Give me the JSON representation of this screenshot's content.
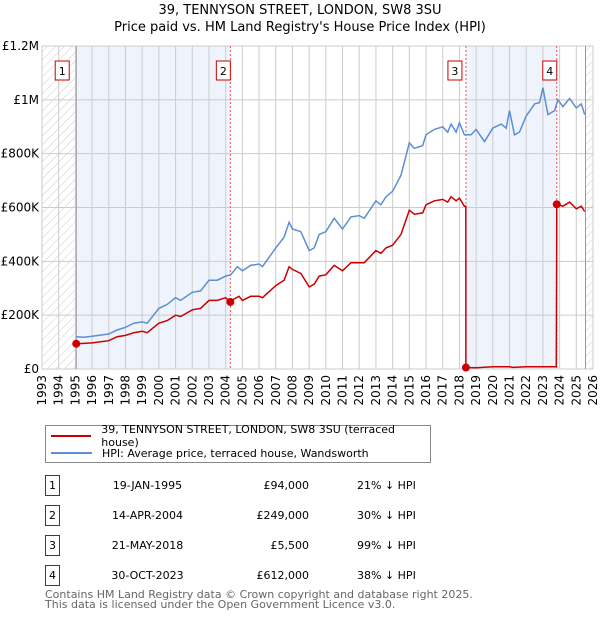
{
  "chart_data": {
    "type": "line",
    "title": "39, TENNYSON STREET, LONDON, SW8 3SU",
    "subtitle": "Price paid vs. HM Land Registry's House Price Index (HPI)",
    "xlim": [
      1993,
      2026
    ],
    "ylim": [
      0,
      1200000
    ],
    "x_ticks": [
      "1993",
      "1994",
      "1995",
      "1996",
      "1997",
      "1998",
      "1999",
      "2000",
      "2001",
      "2002",
      "2003",
      "2004",
      "2005",
      "2006",
      "2007",
      "2008",
      "2009",
      "2010",
      "2011",
      "2012",
      "2013",
      "2014",
      "2015",
      "2016",
      "2017",
      "2018",
      "2019",
      "2020",
      "2021",
      "2022",
      "2023",
      "2024",
      "2025",
      "2026"
    ],
    "y_ticks": [
      {
        "v": 0,
        "label": "£0"
      },
      {
        "v": 200000,
        "label": "£200K"
      },
      {
        "v": 400000,
        "label": "£400K"
      },
      {
        "v": 600000,
        "label": "£600K"
      },
      {
        "v": 800000,
        "label": "£800K"
      },
      {
        "v": 1000000,
        "label": "£1M"
      },
      {
        "v": 1200000,
        "label": "£1.2M"
      }
    ],
    "grid": true,
    "shaded_periods": [
      [
        1995.05,
        2004.28
      ],
      [
        2018.39,
        2023.83
      ]
    ],
    "hatched_periods": [
      [
        1993,
        1995.05
      ],
      [
        2025.55,
        2026
      ]
    ],
    "colors": {
      "property": "#cc0000",
      "hpi": "#5b8fd1",
      "shade": "#eef3fc"
    },
    "series": [
      {
        "name": "39, TENNYSON STREET, LONDON, SW8 3SU (terraced house)",
        "key": "property",
        "points_k": [
          [
            1995.05,
            94
          ],
          [
            1995.5,
            95
          ],
          [
            1996,
            97
          ],
          [
            1997,
            105
          ],
          [
            1997.5,
            120
          ],
          [
            1998,
            125
          ],
          [
            1998.5,
            135
          ],
          [
            1999,
            140
          ],
          [
            1999.3,
            135
          ],
          [
            2000,
            170
          ],
          [
            2000.5,
            180
          ],
          [
            2001,
            200
          ],
          [
            2001.3,
            195
          ],
          [
            2002,
            220
          ],
          [
            2002.5,
            225
          ],
          [
            2003,
            255
          ],
          [
            2003.5,
            255
          ],
          [
            2004,
            265
          ],
          [
            2004.28,
            249
          ],
          [
            2004.5,
            260
          ],
          [
            2004.8,
            270
          ],
          [
            2005,
            255
          ],
          [
            2005.5,
            270
          ],
          [
            2006,
            270
          ],
          [
            2006.2,
            265
          ],
          [
            2007,
            310
          ],
          [
            2007.5,
            330
          ],
          [
            2007.8,
            380
          ],
          [
            2008,
            370
          ],
          [
            2008.5,
            355
          ],
          [
            2009,
            305
          ],
          [
            2009.3,
            315
          ],
          [
            2009.6,
            345
          ],
          [
            2010,
            350
          ],
          [
            2010.5,
            385
          ],
          [
            2011,
            365
          ],
          [
            2011.5,
            395
          ],
          [
            2012,
            395
          ],
          [
            2012.3,
            395
          ],
          [
            2013,
            440
          ],
          [
            2013.3,
            430
          ],
          [
            2013.6,
            450
          ],
          [
            2014,
            460
          ],
          [
            2014.5,
            500
          ],
          [
            2015,
            590
          ],
          [
            2015.3,
            575
          ],
          [
            2015.8,
            580
          ],
          [
            2016,
            610
          ],
          [
            2016.5,
            625
          ],
          [
            2017,
            630
          ],
          [
            2017.3,
            620
          ],
          [
            2017.5,
            640
          ],
          [
            2017.8,
            625
          ],
          [
            2018,
            635
          ],
          [
            2018.3,
            605
          ],
          [
            2018.38,
            605
          ],
          [
            2018.39,
            5.5
          ],
          [
            2019,
            5
          ],
          [
            2020,
            8
          ],
          [
            2021,
            8
          ],
          [
            2021.2,
            6
          ],
          [
            2022,
            8
          ],
          [
            2023,
            8
          ],
          [
            2023.8,
            8
          ],
          [
            2023.83,
            612
          ],
          [
            2024.2,
            605
          ],
          [
            2024.6,
            620
          ],
          [
            2025,
            595
          ],
          [
            2025.3,
            605
          ],
          [
            2025.5,
            585
          ]
        ]
      },
      {
        "name": "HPI: Average price, terraced house, Wandsworth",
        "key": "hpi",
        "points_k": [
          [
            1995.05,
            120
          ],
          [
            1995.5,
            118
          ],
          [
            1996,
            122
          ],
          [
            1997,
            130
          ],
          [
            1997.5,
            145
          ],
          [
            1998,
            155
          ],
          [
            1998.5,
            170
          ],
          [
            1999,
            175
          ],
          [
            1999.3,
            170
          ],
          [
            2000,
            225
          ],
          [
            2000.5,
            240
          ],
          [
            2001,
            265
          ],
          [
            2001.3,
            255
          ],
          [
            2002,
            285
          ],
          [
            2002.5,
            290
          ],
          [
            2003,
            330
          ],
          [
            2003.5,
            330
          ],
          [
            2004,
            345
          ],
          [
            2004.3,
            350
          ],
          [
            2004.7,
            380
          ],
          [
            2005,
            365
          ],
          [
            2005.5,
            385
          ],
          [
            2006,
            390
          ],
          [
            2006.2,
            380
          ],
          [
            2007,
            450
          ],
          [
            2007.5,
            490
          ],
          [
            2007.8,
            545
          ],
          [
            2008,
            520
          ],
          [
            2008.5,
            510
          ],
          [
            2009,
            440
          ],
          [
            2009.3,
            450
          ],
          [
            2009.6,
            500
          ],
          [
            2010,
            510
          ],
          [
            2010.5,
            560
          ],
          [
            2011,
            520
          ],
          [
            2011.5,
            565
          ],
          [
            2012,
            570
          ],
          [
            2012.3,
            560
          ],
          [
            2013,
            625
          ],
          [
            2013.3,
            610
          ],
          [
            2013.6,
            640
          ],
          [
            2014,
            660
          ],
          [
            2014.5,
            720
          ],
          [
            2015,
            840
          ],
          [
            2015.3,
            820
          ],
          [
            2015.8,
            830
          ],
          [
            2016,
            870
          ],
          [
            2016.5,
            890
          ],
          [
            2017,
            900
          ],
          [
            2017.3,
            880
          ],
          [
            2017.5,
            910
          ],
          [
            2017.8,
            880
          ],
          [
            2018,
            915
          ],
          [
            2018.3,
            870
          ],
          [
            2018.7,
            870
          ],
          [
            2019,
            890
          ],
          [
            2019.5,
            845
          ],
          [
            2020,
            895
          ],
          [
            2020.5,
            910
          ],
          [
            2020.8,
            895
          ],
          [
            2021,
            960
          ],
          [
            2021.3,
            870
          ],
          [
            2021.6,
            880
          ],
          [
            2022,
            940
          ],
          [
            2022.5,
            985
          ],
          [
            2022.8,
            990
          ],
          [
            2023,
            1045
          ],
          [
            2023.3,
            945
          ],
          [
            2023.7,
            960
          ],
          [
            2023.9,
            1000
          ],
          [
            2024.2,
            975
          ],
          [
            2024.6,
            1005
          ],
          [
            2025,
            970
          ],
          [
            2025.3,
            985
          ],
          [
            2025.5,
            945
          ]
        ]
      }
    ],
    "sales": [
      {
        "n": "1",
        "x": 1995.05,
        "y": 94000
      },
      {
        "n": "2",
        "x": 2004.28,
        "y": 249000
      },
      {
        "n": "3",
        "x": 2018.39,
        "y": 5500
      },
      {
        "n": "4",
        "x": 2023.83,
        "y": 612000
      }
    ]
  },
  "legend": {
    "property": "39, TENNYSON STREET, LONDON, SW8 3SU (terraced house)",
    "hpi": "HPI: Average price, terraced house, Wandsworth"
  },
  "transactions": [
    {
      "n": "1",
      "date": "19-JAN-1995",
      "price": "£94,000",
      "hpi": "21% ↓ HPI"
    },
    {
      "n": "2",
      "date": "14-APR-2004",
      "price": "£249,000",
      "hpi": "30% ↓ HPI"
    },
    {
      "n": "3",
      "date": "21-MAY-2018",
      "price": "£5,500",
      "hpi": "99% ↓ HPI"
    },
    {
      "n": "4",
      "date": "30-OCT-2023",
      "price": "£612,000",
      "hpi": "38% ↓ HPI"
    }
  ],
  "footer": [
    "Contains HM Land Registry data © Crown copyright and database right 2025.",
    "This data is licensed under the Open Government Licence v3.0."
  ]
}
